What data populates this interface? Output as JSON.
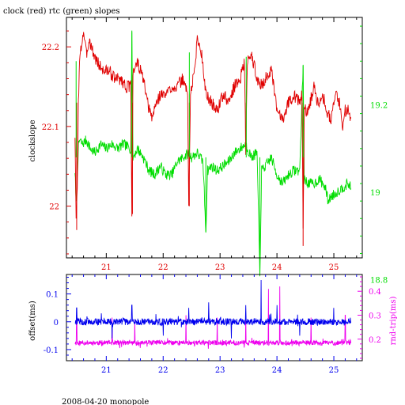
{
  "title": "clock (red) rtc (green) slopes",
  "footer": "2008-04-20 monopole",
  "colors": {
    "red": "#e00000",
    "green": "#00dd00",
    "blue": "#0000ee",
    "magenta": "#ee00ee",
    "axis": "#000000"
  },
  "chart_data": [
    {
      "type": "line",
      "title": "clock (red) rtc (green) slopes",
      "xlim": [
        20.3,
        25.5
      ],
      "x_ticks": [
        21,
        22,
        23,
        24,
        25
      ],
      "ylabel_left": "clockslope",
      "ylim_left": [
        21.935,
        22.237
      ],
      "yticks_left": [
        22,
        22.1,
        22.2
      ],
      "ylim_right": [
        18.85,
        19.4
      ],
      "yticks_right": [
        18.8,
        19,
        19.2
      ],
      "series": [
        {
          "name": "clock",
          "axis": "left",
          "color": "red",
          "points": [
            [
              20.45,
              22.09
            ],
            [
              20.47,
              21.98
            ],
            [
              20.49,
              22.02
            ],
            [
              20.51,
              22.13
            ],
            [
              20.53,
              22.18
            ],
            [
              20.56,
              22.2
            ],
            [
              20.6,
              22.22
            ],
            [
              20.65,
              22.19
            ],
            [
              20.7,
              22.21
            ],
            [
              20.78,
              22.19
            ],
            [
              20.85,
              22.18
            ],
            [
              20.95,
              22.17
            ],
            [
              21.05,
              22.17
            ],
            [
              21.15,
              22.16
            ],
            [
              21.25,
              22.16
            ],
            [
              21.35,
              22.15
            ],
            [
              21.43,
              22.15
            ],
            [
              21.45,
              21.99
            ],
            [
              21.47,
              22.17
            ],
            [
              21.55,
              22.18
            ],
            [
              21.65,
              22.16
            ],
            [
              21.72,
              22.13
            ],
            [
              21.8,
              22.11
            ],
            [
              21.88,
              22.13
            ],
            [
              21.95,
              22.14
            ],
            [
              22.05,
              22.14
            ],
            [
              22.15,
              22.15
            ],
            [
              22.25,
              22.15
            ],
            [
              22.35,
              22.16
            ],
            [
              22.43,
              22.14
            ],
            [
              22.45,
              22.0
            ],
            [
              22.48,
              22.14
            ],
            [
              22.55,
              22.17
            ],
            [
              22.6,
              22.21
            ],
            [
              22.65,
              22.2
            ],
            [
              22.7,
              22.18
            ],
            [
              22.75,
              22.14
            ],
            [
              22.85,
              22.13
            ],
            [
              22.95,
              22.12
            ],
            [
              23.05,
              22.14
            ],
            [
              23.15,
              22.13
            ],
            [
              23.25,
              22.15
            ],
            [
              23.35,
              22.16
            ],
            [
              23.43,
              22.18
            ],
            [
              23.45,
              22.07
            ],
            [
              23.48,
              22.18
            ],
            [
              23.55,
              22.19
            ],
            [
              23.62,
              22.17
            ],
            [
              23.7,
              22.15
            ],
            [
              23.8,
              22.16
            ],
            [
              23.9,
              22.17
            ],
            [
              24.0,
              22.12
            ],
            [
              24.1,
              22.11
            ],
            [
              24.2,
              22.13
            ],
            [
              24.3,
              22.14
            ],
            [
              24.4,
              22.13
            ],
            [
              24.44,
              22.14
            ],
            [
              24.46,
              21.97
            ],
            [
              24.48,
              22.12
            ],
            [
              24.55,
              22.12
            ],
            [
              24.65,
              22.15
            ],
            [
              24.72,
              22.13
            ],
            [
              24.8,
              22.14
            ],
            [
              24.88,
              22.12
            ],
            [
              24.95,
              22.11
            ],
            [
              25.03,
              22.14
            ],
            [
              25.1,
              22.13
            ],
            [
              25.15,
              22.1
            ],
            [
              25.2,
              22.12
            ],
            [
              25.25,
              22.12
            ],
            [
              25.3,
              22.11
            ]
          ]
        },
        {
          "name": "rtc",
          "axis": "right",
          "color": "green",
          "points": [
            [
              20.45,
              19.05
            ],
            [
              20.47,
              18.97
            ],
            [
              20.49,
              19.04
            ],
            [
              20.51,
              19.1
            ],
            [
              20.53,
              19.12
            ],
            [
              20.58,
              19.11
            ],
            [
              20.65,
              19.12
            ],
            [
              20.72,
              19.1
            ],
            [
              20.8,
              19.09
            ],
            [
              20.9,
              19.11
            ],
            [
              21.0,
              19.1
            ],
            [
              21.1,
              19.11
            ],
            [
              21.2,
              19.1
            ],
            [
              21.3,
              19.11
            ],
            [
              21.43,
              19.1
            ],
            [
              21.45,
              19.37
            ],
            [
              21.47,
              19.08
            ],
            [
              21.55,
              19.1
            ],
            [
              21.65,
              19.08
            ],
            [
              21.75,
              19.05
            ],
            [
              21.85,
              19.04
            ],
            [
              21.95,
              19.06
            ],
            [
              22.05,
              19.04
            ],
            [
              22.15,
              19.04
            ],
            [
              22.25,
              19.07
            ],
            [
              22.35,
              19.08
            ],
            [
              22.45,
              19.09
            ],
            [
              22.5,
              19.08
            ],
            [
              22.6,
              19.09
            ],
            [
              22.7,
              19.07
            ],
            [
              22.75,
              18.91
            ],
            [
              22.78,
              19.05
            ],
            [
              22.85,
              19.06
            ],
            [
              22.95,
              19.05
            ],
            [
              23.05,
              19.06
            ],
            [
              23.15,
              19.07
            ],
            [
              23.25,
              19.09
            ],
            [
              23.35,
              19.1
            ],
            [
              23.45,
              19.11
            ],
            [
              23.55,
              19.08
            ],
            [
              23.65,
              19.09
            ],
            [
              23.7,
              18.81
            ],
            [
              23.73,
              19.05
            ],
            [
              23.8,
              19.06
            ],
            [
              23.9,
              19.08
            ],
            [
              24.0,
              19.04
            ],
            [
              24.1,
              19.02
            ],
            [
              24.2,
              19.04
            ],
            [
              24.3,
              19.05
            ],
            [
              24.4,
              19.05
            ],
            [
              24.46,
              19.29
            ],
            [
              24.48,
              19.03
            ],
            [
              24.55,
              19.02
            ],
            [
              24.65,
              19.02
            ],
            [
              24.75,
              19.03
            ],
            [
              24.85,
              19.01
            ],
            [
              24.9,
              18.98
            ],
            [
              24.95,
              18.99
            ],
            [
              25.05,
              19.0
            ],
            [
              25.15,
              19.01
            ],
            [
              25.25,
              19.02
            ],
            [
              25.3,
              19.01
            ]
          ]
        }
      ],
      "spikes": [
        {
          "series": "clock",
          "x": 20.48,
          "to": 21.97
        },
        {
          "series": "clock",
          "x": 21.46,
          "to": 21.99
        },
        {
          "series": "clock",
          "x": 22.46,
          "to": 22.0
        },
        {
          "series": "clock",
          "x": 23.46,
          "to": 22.07
        },
        {
          "series": "clock",
          "x": 24.46,
          "to": 21.95
        },
        {
          "series": "rtc",
          "x": 20.47,
          "to": 19.3
        },
        {
          "series": "rtc",
          "x": 21.45,
          "to": 19.37
        },
        {
          "series": "rtc",
          "x": 22.46,
          "to": 19.32
        },
        {
          "series": "rtc",
          "x": 22.75,
          "to": 18.91
        },
        {
          "series": "rtc",
          "x": 23.46,
          "to": 19.31
        },
        {
          "series": "rtc",
          "x": 23.7,
          "to": 18.81
        },
        {
          "series": "rtc",
          "x": 24.46,
          "to": 19.29
        }
      ]
    },
    {
      "type": "line",
      "xlim": [
        20.3,
        25.5
      ],
      "x_ticks": [
        21,
        22,
        23,
        24,
        25
      ],
      "ylabel_left": "offset(ms)",
      "ylim_left": [
        -0.14,
        0.17
      ],
      "yticks_left": [
        -0.1,
        0,
        0.1
      ],
      "ylabel_right": "rnd-trip(ms)",
      "ylim_right": [
        0.11,
        0.47
      ],
      "yticks_right": [
        0.2,
        0.3,
        0.4
      ],
      "series": [
        {
          "name": "offset",
          "axis": "left",
          "color": "blue",
          "noise_center": 0.0,
          "noise_amp": 0.012,
          "spikes": [
            [
              20.48,
              0.05
            ],
            [
              21.1,
              -0.06
            ],
            [
              21.45,
              0.06
            ],
            [
              22.0,
              -0.05
            ],
            [
              22.45,
              0.05
            ],
            [
              22.8,
              0.07
            ],
            [
              23.2,
              -0.06
            ],
            [
              23.45,
              0.06
            ],
            [
              23.72,
              0.15
            ],
            [
              24.0,
              0.06
            ],
            [
              24.4,
              -0.05
            ],
            [
              25.0,
              0.05
            ]
          ]
        },
        {
          "name": "rnd-trip",
          "axis": "right",
          "color": "magenta",
          "noise_center": 0.185,
          "noise_amp": 0.01,
          "spikes": [
            [
              20.48,
              0.3
            ],
            [
              21.1,
              0.29
            ],
            [
              21.5,
              0.28
            ],
            [
              22.4,
              0.3
            ],
            [
              22.95,
              0.29
            ],
            [
              23.45,
              0.3
            ],
            [
              23.85,
              0.41
            ],
            [
              24.05,
              0.42
            ],
            [
              24.6,
              0.29
            ],
            [
              25.2,
              0.3
            ]
          ]
        }
      ]
    }
  ]
}
